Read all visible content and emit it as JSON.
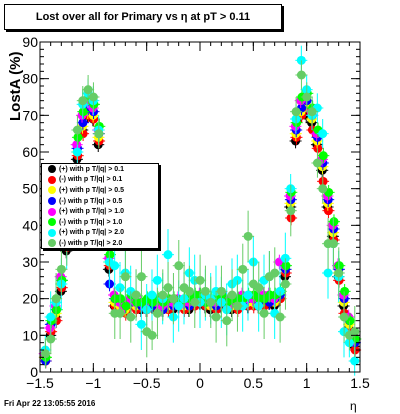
{
  "chart_data": {
    "type": "scatter",
    "title": "Lost over all for Primary vs   η at pT > 0.11",
    "xlabel": "η",
    "ylabel": "LostA (%)",
    "xlim": [
      -1.5,
      1.5
    ],
    "ylim": [
      0,
      90
    ],
    "x_ticks": [
      "−1.5",
      "−1",
      "−0.5",
      "0",
      "0.5",
      "1",
      "1.5"
    ],
    "y_ticks": [
      "0",
      "10",
      "20",
      "30",
      "40",
      "50",
      "60",
      "70",
      "80",
      "90"
    ],
    "grid": false,
    "legend_position": "left-middle",
    "x": [
      -1.45,
      -1.4,
      -1.35,
      -1.3,
      -1.25,
      -1.2,
      -1.15,
      -1.1,
      -1.05,
      -1.0,
      -0.95,
      -0.9,
      -0.85,
      -0.8,
      -0.75,
      -0.7,
      -0.65,
      -0.6,
      -0.55,
      -0.5,
      -0.45,
      -0.4,
      -0.35,
      -0.3,
      -0.25,
      -0.2,
      -0.15,
      -0.1,
      -0.05,
      0.0,
      0.05,
      0.1,
      0.15,
      0.2,
      0.25,
      0.3,
      0.35,
      0.4,
      0.45,
      0.5,
      0.55,
      0.6,
      0.65,
      0.7,
      0.75,
      0.8,
      0.85,
      0.9,
      0.95,
      1.0,
      1.05,
      1.1,
      1.15,
      1.2,
      1.25,
      1.3,
      1.35,
      1.4,
      1.45
    ],
    "series": [
      {
        "name": "(+) with p T/|q| > 0.1",
        "color": "#000000",
        "values": [
          4,
          10,
          15,
          22,
          33,
          45,
          58,
          66,
          70,
          69,
          62,
          50,
          28,
          18,
          17,
          17,
          18,
          18,
          17,
          17,
          18,
          17,
          17,
          18,
          17,
          18,
          18,
          17,
          19,
          19,
          18,
          17,
          18,
          18,
          18,
          17,
          18,
          19,
          18,
          19,
          18,
          19,
          19,
          18,
          20,
          26,
          45,
          63,
          70,
          70,
          68,
          62,
          55,
          45,
          37,
          26,
          18,
          12,
          7
        ]
      },
      {
        "name": "(-) with p T/|q| > 0.1",
        "color": "#ff0000",
        "values": [
          3,
          11,
          14,
          23,
          34,
          46,
          59,
          65,
          70,
          69,
          63,
          51,
          29,
          18,
          17,
          16,
          18,
          17,
          18,
          17,
          18,
          17,
          17,
          17,
          18,
          18,
          17,
          18,
          18,
          19,
          18,
          18,
          17,
          19,
          18,
          18,
          17,
          19,
          18,
          18,
          19,
          18,
          19,
          19,
          20,
          27,
          42,
          64,
          70,
          72,
          66,
          61,
          52,
          44,
          36,
          25,
          16,
          11,
          6
        ]
      },
      {
        "name": "(+) with p T/|q| > 0.5",
        "color": "#ffff00",
        "values": [
          4,
          12,
          16,
          24,
          35,
          47,
          60,
          67,
          71,
          70,
          64,
          52,
          30,
          19,
          18,
          17,
          19,
          18,
          18,
          18,
          19,
          18,
          18,
          18,
          18,
          19,
          18,
          18,
          19,
          20,
          19,
          18,
          18,
          19,
          19,
          18,
          18,
          20,
          19,
          19,
          19,
          20,
          20,
          19,
          21,
          28,
          46,
          65,
          71,
          73,
          69,
          63,
          56,
          46,
          38,
          27,
          19,
          13,
          8
        ]
      },
      {
        "name": "(-) with p T/|q| > 0.5",
        "color": "#0000ff",
        "values": [
          3,
          13,
          17,
          25,
          36,
          48,
          61,
          68,
          72,
          71,
          65,
          53,
          24,
          20,
          19,
          18,
          19,
          19,
          18,
          19,
          18,
          19,
          17,
          19,
          18,
          19,
          19,
          18,
          20,
          20,
          19,
          19,
          18,
          20,
          19,
          19,
          18,
          19,
          20,
          20,
          19,
          20,
          19,
          20,
          21,
          28,
          47,
          66,
          72,
          74,
          70,
          64,
          57,
          47,
          39,
          28,
          20,
          14,
          8
        ]
      },
      {
        "name": "(+) with p T/|q| > 1.0",
        "color": "#ff00ff",
        "values": [
          5,
          12,
          18,
          26,
          37,
          49,
          62,
          70,
          74,
          72,
          66,
          54,
          31,
          21,
          19,
          18,
          20,
          19,
          19,
          19,
          20,
          19,
          18,
          19,
          19,
          20,
          19,
          19,
          20,
          21,
          20,
          19,
          19,
          20,
          20,
          19,
          19,
          21,
          20,
          20,
          20,
          21,
          21,
          20,
          30,
          29,
          48,
          67,
          74,
          75,
          71,
          65,
          58,
          48,
          40,
          29,
          21,
          15,
          9
        ]
      },
      {
        "name": "(-) with p T/|q| > 1.0",
        "color": "#00ff00",
        "values": [
          4,
          14,
          17,
          25,
          38,
          50,
          64,
          71,
          75,
          73,
          67,
          55,
          32,
          20,
          20,
          18,
          21,
          19,
          19,
          20,
          19,
          20,
          19,
          20,
          20,
          19,
          20,
          20,
          21,
          21,
          19,
          20,
          20,
          21,
          19,
          20,
          20,
          20,
          21,
          21,
          20,
          20,
          21,
          21,
          22,
          29,
          49,
          68,
          75,
          76,
          72,
          66,
          59,
          49,
          41,
          29,
          22,
          14,
          9
        ]
      },
      {
        "name": "(+) with p T/|q| > 2.0",
        "color": "#00ffff",
        "values": [
          6,
          15,
          19,
          24,
          35,
          47,
          60,
          73,
          76,
          74,
          66,
          40,
          30,
          29,
          23,
          27,
          22,
          21,
          13,
          17,
          21,
          25,
          20,
          32,
          15,
          18,
          20,
          27,
          25,
          19,
          21,
          20,
          22,
          19,
          17,
          24,
          25,
          18,
          21,
          30,
          18,
          25,
          26,
          16,
          22,
          31,
          50,
          69,
          85,
          77,
          70,
          72,
          65,
          27,
          35,
          26,
          11,
          8,
          3
        ]
      },
      {
        "name": "(-) with p T/|q| > 2.0",
        "color": "#66cc66",
        "values": [
          5,
          9,
          20,
          28,
          36,
          49,
          66,
          74,
          77,
          75,
          65,
          52,
          35,
          16,
          16,
          26,
          15,
          21,
          26,
          11,
          10,
          16,
          21,
          23,
          20,
          29,
          23,
          22,
          19,
          25,
          22,
          19,
          15,
          22,
          14,
          21,
          18,
          28,
          37,
          24,
          23,
          16,
          26,
          27,
          15,
          24,
          44,
          71,
          81,
          75,
          71,
          57,
          50,
          35,
          35,
          27,
          15,
          10,
          11
        ]
      }
    ]
  },
  "title_text": "Lost over all for Primary vs   η at pT > 0.11",
  "legend_entries": [
    {
      "label": "(+) with p T/|q| > 0.1",
      "color": "#000000"
    },
    {
      "label": "(-) with p T/|q| > 0.1",
      "color": "#ff0000"
    },
    {
      "label": "(+) with p T/|q| > 0.5",
      "color": "#ffff00"
    },
    {
      "label": "(-) with p T/|q| > 0.5",
      "color": "#0000ff"
    },
    {
      "label": "(+) with p T/|q| > 1.0",
      "color": "#ff00ff"
    },
    {
      "label": "(-) with p T/|q| > 1.0",
      "color": "#00ff00"
    },
    {
      "label": "(+) with p T/|q| > 2.0",
      "color": "#00ffff"
    },
    {
      "label": "(-) with p T/|q| > 2.0",
      "color": "#66cc66"
    }
  ],
  "timestamp": "Fri Apr 22 13:05:55 2016"
}
